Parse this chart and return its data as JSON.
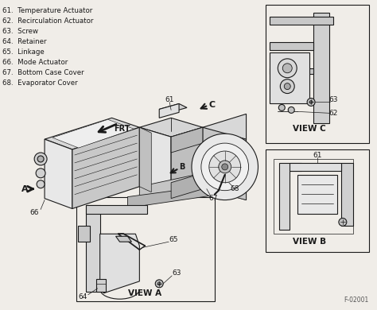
{
  "background_color": "#f0ede8",
  "legend_items": [
    "61.  Temperature Actuator",
    "62.  Recirculation Actuator",
    "63.  Screw",
    "64.  Retainer",
    "65.  Linkage",
    "66.  Mode Actuator",
    "67.  Bottom Case Cover",
    "68.  Evaporator Cover"
  ],
  "footer_text": "F-02001",
  "fig_width": 4.74,
  "fig_height": 3.9,
  "dpi": 100
}
